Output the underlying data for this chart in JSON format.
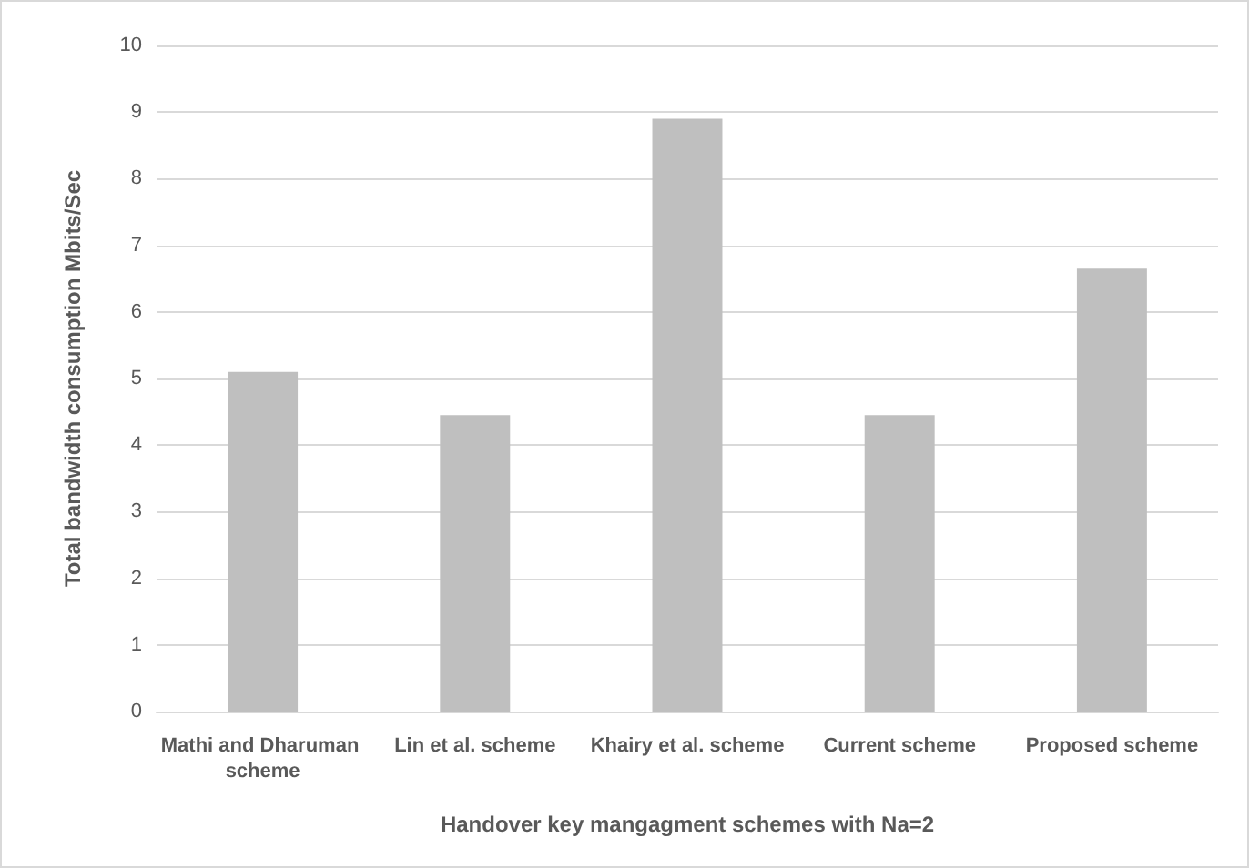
{
  "chart_data": {
    "type": "bar",
    "xlabel": "Handover key mangagment schemes with Na=2",
    "ylabel": "Total bandwidth consumption Mbits/Sec",
    "categories": [
      "Mathi and Dharuman scheme",
      "Lin et al. scheme",
      "Khairy et al. scheme",
      "Current scheme",
      "Proposed scheme"
    ],
    "values": [
      5.1,
      4.45,
      8.9,
      4.45,
      6.65
    ],
    "color": "#bfbfbf",
    "ylim": [
      0,
      10
    ],
    "yticks": [
      0,
      1,
      2,
      3,
      4,
      5,
      6,
      7,
      8,
      9,
      10
    ],
    "grid": "y"
  }
}
